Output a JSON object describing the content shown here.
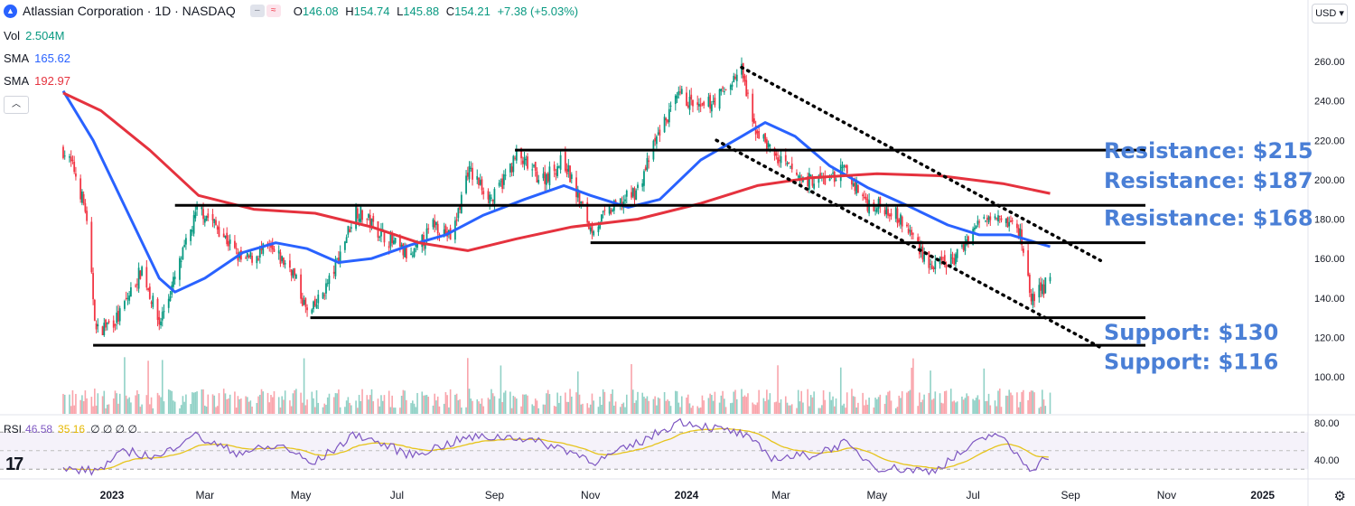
{
  "header": {
    "title": "Atlassian Corporation · 1D · NASDAQ",
    "open_label": "O",
    "open": "146.08",
    "high_label": "H",
    "high": "154.74",
    "low_label": "L",
    "low": "145.88",
    "close_label": "C",
    "close": "154.21",
    "change": "+7.38 (+5.03%)"
  },
  "indicators": {
    "vol_label": "Vol",
    "vol_value": "2.504M",
    "sma1_label": "SMA",
    "sma1_value": "165.62",
    "sma2_label": "SMA",
    "sma2_value": "192.97"
  },
  "currency": "USD",
  "rsi": {
    "label": "RSI",
    "value": "46.58",
    "signal": "35.16",
    "extra": "∅ ∅ ∅ ∅"
  },
  "colors": {
    "up": "#089981",
    "down": "#f23645",
    "sma_fast": "#2962ff",
    "sma_slow": "#e5323e",
    "annotation": "#4a7fd6",
    "rsi_line": "#7e57c2",
    "rsi_signal": "#e6c41c"
  },
  "chart_data": {
    "type": "line",
    "description_series": "Daily candlestick price with 50/200-day SMAs, volume and RSI",
    "x_tick_labels": [
      "2023",
      "Mar",
      "May",
      "Jul",
      "Sep",
      "Nov",
      "2024",
      "Mar",
      "May",
      "Jul",
      "Sep",
      "Nov",
      "2025"
    ],
    "y_tick_labels": [
      "260.00",
      "240.00",
      "220.00",
      "200.00",
      "180.00",
      "160.00",
      "140.00",
      "120.00",
      "100.00"
    ],
    "ylim": [
      100,
      260
    ],
    "price_points": [
      {
        "x": "2022-12-01",
        "y": 215
      },
      {
        "x": "2022-12-08",
        "y": 205
      },
      {
        "x": "2022-12-15",
        "y": 185
      },
      {
        "x": "2022-12-22",
        "y": 123
      },
      {
        "x": "2023-01-05",
        "y": 130
      },
      {
        "x": "2023-01-20",
        "y": 155
      },
      {
        "x": "2023-01-31",
        "y": 127
      },
      {
        "x": "2023-02-10",
        "y": 150
      },
      {
        "x": "2023-02-25",
        "y": 186
      },
      {
        "x": "2023-03-10",
        "y": 175
      },
      {
        "x": "2023-03-25",
        "y": 158
      },
      {
        "x": "2023-04-10",
        "y": 165
      },
      {
        "x": "2023-04-25",
        "y": 155
      },
      {
        "x": "2023-05-06",
        "y": 130
      },
      {
        "x": "2023-05-20",
        "y": 150
      },
      {
        "x": "2023-06-05",
        "y": 185
      },
      {
        "x": "2023-06-25",
        "y": 170
      },
      {
        "x": "2023-07-10",
        "y": 160
      },
      {
        "x": "2023-07-25",
        "y": 178
      },
      {
        "x": "2023-08-05",
        "y": 170
      },
      {
        "x": "2023-08-15",
        "y": 205
      },
      {
        "x": "2023-08-31",
        "y": 190
      },
      {
        "x": "2023-09-15",
        "y": 212
      },
      {
        "x": "2023-10-01",
        "y": 200
      },
      {
        "x": "2023-10-15",
        "y": 210
      },
      {
        "x": "2023-11-01",
        "y": 175
      },
      {
        "x": "2023-11-15",
        "y": 185
      },
      {
        "x": "2023-12-01",
        "y": 195
      },
      {
        "x": "2023-12-15",
        "y": 225
      },
      {
        "x": "2023-12-28",
        "y": 243
      },
      {
        "x": "2024-01-10",
        "y": 235
      },
      {
        "x": "2024-01-25",
        "y": 245
      },
      {
        "x": "2024-02-05",
        "y": 256
      },
      {
        "x": "2024-02-12",
        "y": 228
      },
      {
        "x": "2024-02-28",
        "y": 210
      },
      {
        "x": "2024-03-15",
        "y": 200
      },
      {
        "x": "2024-04-01",
        "y": 200
      },
      {
        "x": "2024-04-10",
        "y": 205
      },
      {
        "x": "2024-04-25",
        "y": 188
      },
      {
        "x": "2024-05-10",
        "y": 185
      },
      {
        "x": "2024-05-25",
        "y": 170
      },
      {
        "x": "2024-06-05",
        "y": 155
      },
      {
        "x": "2024-06-20",
        "y": 160
      },
      {
        "x": "2024-07-01",
        "y": 175
      },
      {
        "x": "2024-07-15",
        "y": 185
      },
      {
        "x": "2024-07-31",
        "y": 173
      },
      {
        "x": "2024-08-07",
        "y": 140
      },
      {
        "x": "2024-08-15",
        "y": 145
      },
      {
        "x": "2024-08-19",
        "y": 154
      }
    ],
    "series": [
      {
        "name": "SMA",
        "color": "#2962ff",
        "points": [
          {
            "x": "2022-12-01",
            "y": 245
          },
          {
            "x": "2022-12-20",
            "y": 220
          },
          {
            "x": "2023-01-10",
            "y": 185
          },
          {
            "x": "2023-01-31",
            "y": 150
          },
          {
            "x": "2023-02-10",
            "y": 143
          },
          {
            "x": "2023-03-01",
            "y": 150
          },
          {
            "x": "2023-03-25",
            "y": 163
          },
          {
            "x": "2023-04-15",
            "y": 168
          },
          {
            "x": "2023-05-05",
            "y": 165
          },
          {
            "x": "2023-05-25",
            "y": 158
          },
          {
            "x": "2023-06-15",
            "y": 160
          },
          {
            "x": "2023-07-10",
            "y": 167
          },
          {
            "x": "2023-08-01",
            "y": 172
          },
          {
            "x": "2023-08-25",
            "y": 182
          },
          {
            "x": "2023-09-20",
            "y": 190
          },
          {
            "x": "2023-10-15",
            "y": 197
          },
          {
            "x": "2023-11-01",
            "y": 192
          },
          {
            "x": "2023-11-25",
            "y": 186
          },
          {
            "x": "2023-12-15",
            "y": 190
          },
          {
            "x": "2024-01-10",
            "y": 210
          },
          {
            "x": "2024-02-05",
            "y": 222
          },
          {
            "x": "2024-02-20",
            "y": 229
          },
          {
            "x": "2024-03-10",
            "y": 222
          },
          {
            "x": "2024-04-01",
            "y": 207
          },
          {
            "x": "2024-04-25",
            "y": 196
          },
          {
            "x": "2024-05-20",
            "y": 187
          },
          {
            "x": "2024-06-15",
            "y": 177
          },
          {
            "x": "2024-07-05",
            "y": 172
          },
          {
            "x": "2024-07-25",
            "y": 172
          },
          {
            "x": "2024-08-19",
            "y": 166
          }
        ]
      },
      {
        "name": "SMA",
        "color": "#e5323e",
        "points": [
          {
            "x": "2022-12-01",
            "y": 244
          },
          {
            "x": "2022-12-25",
            "y": 235
          },
          {
            "x": "2023-01-25",
            "y": 215
          },
          {
            "x": "2023-02-25",
            "y": 192
          },
          {
            "x": "2023-04-01",
            "y": 185
          },
          {
            "x": "2023-05-10",
            "y": 183
          },
          {
            "x": "2023-06-15",
            "y": 176
          },
          {
            "x": "2023-07-15",
            "y": 168
          },
          {
            "x": "2023-08-15",
            "y": 164
          },
          {
            "x": "2023-09-15",
            "y": 170
          },
          {
            "x": "2023-10-20",
            "y": 176
          },
          {
            "x": "2023-12-01",
            "y": 180
          },
          {
            "x": "2024-01-10",
            "y": 188
          },
          {
            "x": "2024-02-15",
            "y": 197
          },
          {
            "x": "2024-03-20",
            "y": 201
          },
          {
            "x": "2024-05-01",
            "y": 203
          },
          {
            "x": "2024-06-10",
            "y": 202
          },
          {
            "x": "2024-07-20",
            "y": 198
          },
          {
            "x": "2024-08-19",
            "y": 193
          }
        ]
      }
    ],
    "levels": [
      {
        "value": 215,
        "x_start": "2023-09-14"
      },
      {
        "value": 187,
        "x_start": "2023-02-10"
      },
      {
        "value": 168,
        "x_start": "2023-11-01"
      },
      {
        "value": 130,
        "x_start": "2023-05-07"
      },
      {
        "value": 116,
        "x_start": "2022-12-20"
      }
    ],
    "annotations": [
      {
        "text": "Resistance: $215",
        "y": 215
      },
      {
        "text": "Resistance: $187",
        "y": 200
      },
      {
        "text": "Resistance: $168",
        "y": 181
      },
      {
        "text": "Support: $130",
        "y": 123
      },
      {
        "text": "Support: $116",
        "y": 108
      }
    ],
    "channel": {
      "upper": [
        {
          "x": "2024-02-05",
          "y": 257
        },
        {
          "x": "2024-09-20",
          "y": 159
        }
      ],
      "lower": [
        {
          "x": "2024-01-20",
          "y": 220
        },
        {
          "x": "2024-09-22",
          "y": 114
        }
      ]
    },
    "rsi": {
      "ylim": [
        20,
        90
      ],
      "tick_labels": [
        "80.00",
        "40.00"
      ],
      "points": [
        {
          "x": "2022-12-01",
          "y": 30
        },
        {
          "x": "2022-12-22",
          "y": 28
        },
        {
          "x": "2023-01-10",
          "y": 50
        },
        {
          "x": "2023-01-31",
          "y": 42
        },
        {
          "x": "2023-02-20",
          "y": 68
        },
        {
          "x": "2023-03-20",
          "y": 48
        },
        {
          "x": "2023-04-20",
          "y": 55
        },
        {
          "x": "2023-05-08",
          "y": 35
        },
        {
          "x": "2023-06-05",
          "y": 68
        },
        {
          "x": "2023-07-10",
          "y": 45
        },
        {
          "x": "2023-08-15",
          "y": 64
        },
        {
          "x": "2023-09-15",
          "y": 65
        },
        {
          "x": "2023-10-15",
          "y": 52
        },
        {
          "x": "2023-11-05",
          "y": 38
        },
        {
          "x": "2023-12-01",
          "y": 58
        },
        {
          "x": "2023-12-28",
          "y": 82
        },
        {
          "x": "2024-02-05",
          "y": 68
        },
        {
          "x": "2024-02-25",
          "y": 42
        },
        {
          "x": "2024-03-20",
          "y": 45
        },
        {
          "x": "2024-04-10",
          "y": 58
        },
        {
          "x": "2024-05-01",
          "y": 32
        },
        {
          "x": "2024-06-05",
          "y": 28
        },
        {
          "x": "2024-07-15",
          "y": 70
        },
        {
          "x": "2024-08-07",
          "y": 30
        },
        {
          "x": "2024-08-19",
          "y": 46
        }
      ]
    }
  }
}
